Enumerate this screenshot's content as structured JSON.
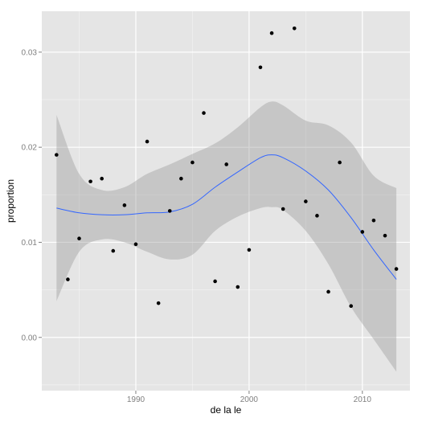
{
  "chart_data": {
    "type": "scatter",
    "title": "",
    "xlabel": "de la le",
    "ylabel": "proportion",
    "xlim": [
      1981.7,
      2014.2
    ],
    "ylim": [
      -0.0056,
      0.0343
    ],
    "x_ticks": [
      1990,
      2000,
      2010
    ],
    "x_tick_labels": [
      "1990",
      "2000",
      "2010"
    ],
    "y_ticks": [
      0.0,
      0.01,
      0.02,
      0.03
    ],
    "y_tick_labels": [
      "0.00",
      "0.01",
      "0.02",
      "0.03"
    ],
    "grid": true,
    "legend": "none",
    "colors": {
      "panel_background": "#e5e5e5",
      "grid": "#ffffff",
      "points": "#000000",
      "smooth_line": "#3366ff",
      "confidence_band": "#999999"
    },
    "points": {
      "x": [
        1983,
        1984,
        1985,
        1986,
        1987,
        1988,
        1989,
        1990,
        1991,
        1992,
        1993,
        1994,
        1995,
        1996,
        1997,
        1998,
        1999,
        2000,
        2001,
        2002,
        2003,
        2004,
        2005,
        2006,
        2007,
        2008,
        2009,
        2010,
        2011,
        2012,
        2013
      ],
      "y": [
        0.0192,
        0.0061,
        0.0104,
        0.0164,
        0.0167,
        0.0091,
        0.0139,
        0.0098,
        0.0206,
        0.0036,
        0.0133,
        0.0167,
        0.0184,
        0.0236,
        0.0059,
        0.0182,
        0.0053,
        0.0092,
        0.0284,
        0.032,
        0.0135,
        0.0325,
        0.0143,
        0.0128,
        0.0048,
        0.0184,
        0.0033,
        0.0111,
        0.0123,
        0.0107,
        0.0072
      ]
    },
    "smooth": {
      "x": [
        1983,
        1985,
        1987,
        1989,
        1991,
        1993,
        1995,
        1997,
        1999,
        2001,
        2002,
        2003,
        2005,
        2007,
        2009,
        2011,
        2013
      ],
      "y": [
        0.0136,
        0.0131,
        0.0129,
        0.0129,
        0.0131,
        0.0132,
        0.014,
        0.0158,
        0.0174,
        0.0189,
        0.0192,
        0.0189,
        0.0175,
        0.0155,
        0.0126,
        0.0092,
        0.0061
      ],
      "lower": [
        0.0038,
        0.009,
        0.0103,
        0.01,
        0.009,
        0.0082,
        0.0087,
        0.0112,
        0.0127,
        0.0136,
        0.0137,
        0.0134,
        0.0112,
        0.0077,
        0.0032,
        -0.0002,
        -0.0036
      ],
      "upper": [
        0.0234,
        0.0172,
        0.0155,
        0.0158,
        0.0172,
        0.0182,
        0.0193,
        0.0204,
        0.0221,
        0.0242,
        0.0248,
        0.0244,
        0.0228,
        0.0223,
        0.0205,
        0.017,
        0.0157
      ]
    }
  }
}
